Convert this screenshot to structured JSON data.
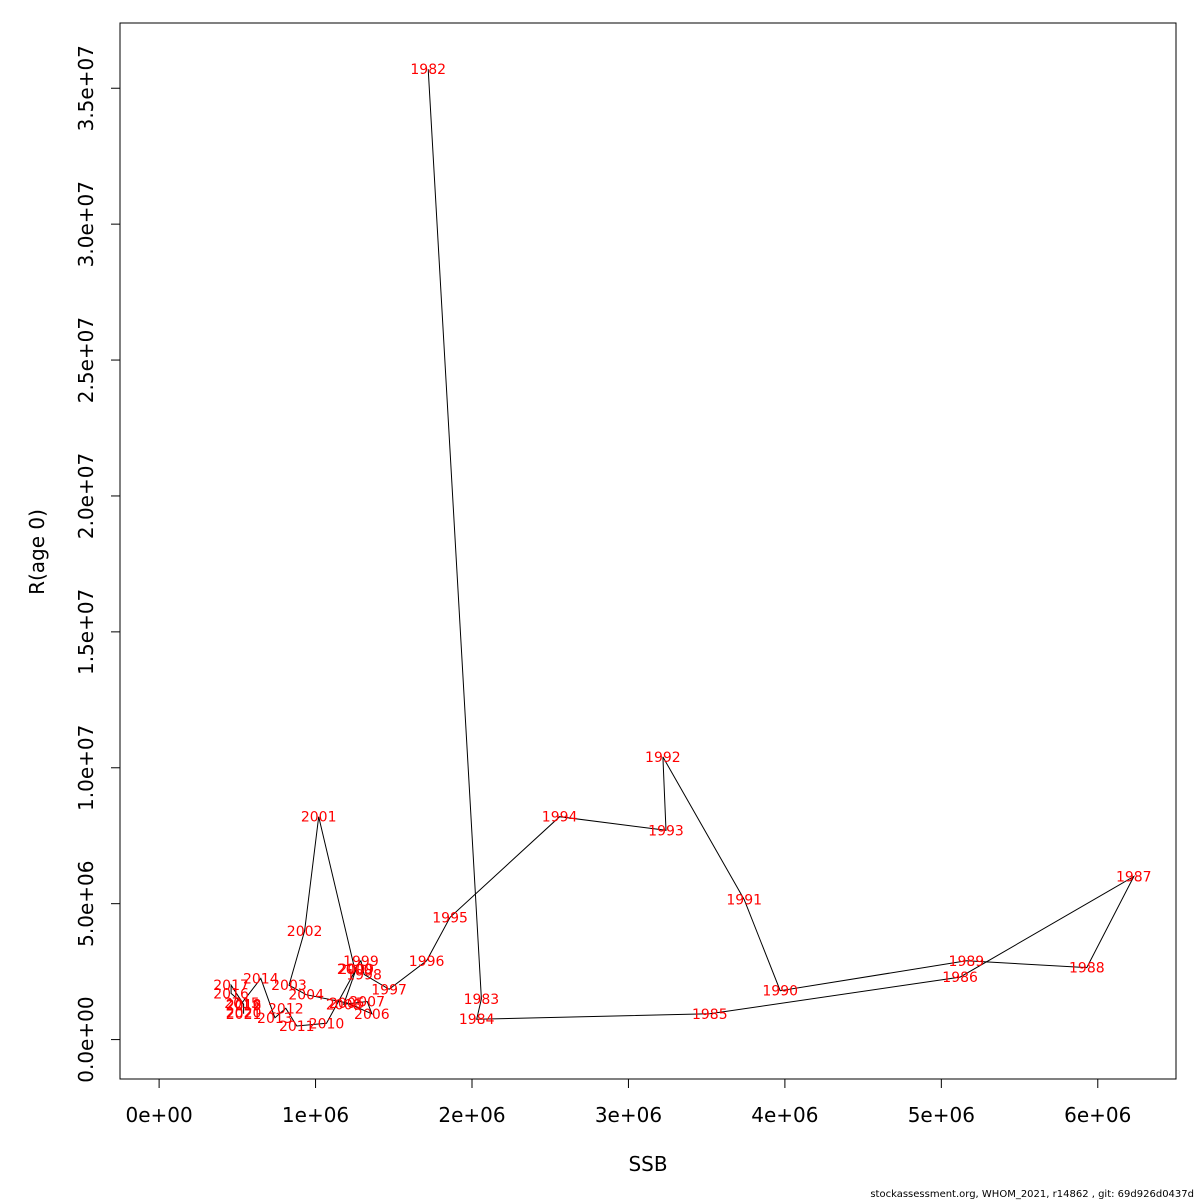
{
  "chart_data": {
    "type": "line",
    "xlabel": "SSB",
    "ylabel": "R(age 0)",
    "xlim": [
      -250000,
      6500000
    ],
    "ylim": [
      -1450000,
      37400000
    ],
    "x_ticks": [
      {
        "value": 0,
        "label": "0e+00"
      },
      {
        "value": 1000000,
        "label": "1e+06"
      },
      {
        "value": 2000000,
        "label": "2e+06"
      },
      {
        "value": 3000000,
        "label": "3e+06"
      },
      {
        "value": 4000000,
        "label": "4e+06"
      },
      {
        "value": 5000000,
        "label": "5e+06"
      },
      {
        "value": 6000000,
        "label": "6e+06"
      }
    ],
    "y_ticks": [
      {
        "value": 0,
        "label": "0.0e+00"
      },
      {
        "value": 5000000,
        "label": "5.0e+06"
      },
      {
        "value": 10000000,
        "label": "1.0e+07"
      },
      {
        "value": 15000000,
        "label": "1.5e+07"
      },
      {
        "value": 20000000,
        "label": "2.0e+07"
      },
      {
        "value": 25000000,
        "label": "2.5e+07"
      },
      {
        "value": 30000000,
        "label": "3.0e+07"
      },
      {
        "value": 35000000,
        "label": "3.5e+07"
      }
    ],
    "label_color": "#ff0000",
    "line_color": "#000000",
    "points": [
      {
        "year": "1982",
        "x": 1720000,
        "y": 35700000
      },
      {
        "year": "1983",
        "x": 2060000,
        "y": 1500000
      },
      {
        "year": "1984",
        "x": 2030000,
        "y": 750000
      },
      {
        "year": "1985",
        "x": 3520000,
        "y": 950000
      },
      {
        "year": "1986",
        "x": 5120000,
        "y": 2300000
      },
      {
        "year": "1987",
        "x": 6230000,
        "y": 6000000
      },
      {
        "year": "1988",
        "x": 5930000,
        "y": 2650000
      },
      {
        "year": "1989",
        "x": 5160000,
        "y": 2900000
      },
      {
        "year": "1990",
        "x": 3970000,
        "y": 1800000
      },
      {
        "year": "1991",
        "x": 3740000,
        "y": 5150000
      },
      {
        "year": "1992",
        "x": 3220000,
        "y": 10400000
      },
      {
        "year": "1993",
        "x": 3240000,
        "y": 7700000
      },
      {
        "year": "1994",
        "x": 2560000,
        "y": 8200000
      },
      {
        "year": "1995",
        "x": 1860000,
        "y": 4500000
      },
      {
        "year": "1996",
        "x": 1710000,
        "y": 2900000
      },
      {
        "year": "1997",
        "x": 1470000,
        "y": 1850000
      },
      {
        "year": "1998",
        "x": 1310000,
        "y": 2400000
      },
      {
        "year": "1999",
        "x": 1290000,
        "y": 2900000
      },
      {
        "year": "2000",
        "x": 1250000,
        "y": 2600000
      },
      {
        "year": "2001",
        "x": 1020000,
        "y": 8200000
      },
      {
        "year": "2002",
        "x": 930000,
        "y": 4000000
      },
      {
        "year": "2003",
        "x": 830000,
        "y": 2000000
      },
      {
        "year": "2004",
        "x": 940000,
        "y": 1650000
      },
      {
        "year": "2005",
        "x": 1200000,
        "y": 1350000
      },
      {
        "year": "2006",
        "x": 1360000,
        "y": 950000
      },
      {
        "year": "2007",
        "x": 1330000,
        "y": 1400000
      },
      {
        "year": "2008",
        "x": 1180000,
        "y": 1300000
      },
      {
        "year": "2009",
        "x": 1260000,
        "y": 2600000
      },
      {
        "year": "2010",
        "x": 1070000,
        "y": 600000
      },
      {
        "year": "2011",
        "x": 880000,
        "y": 500000
      },
      {
        "year": "2012",
        "x": 810000,
        "y": 1150000
      },
      {
        "year": "2013",
        "x": 740000,
        "y": 800000
      },
      {
        "year": "2014",
        "x": 650000,
        "y": 2250000
      },
      {
        "year": "2015",
        "x": 530000,
        "y": 1350000
      },
      {
        "year": "2016",
        "x": 460000,
        "y": 1700000
      },
      {
        "year": "2017",
        "x": 460000,
        "y": 2000000
      },
      {
        "year": "2018",
        "x": 540000,
        "y": 1300000
      },
      {
        "year": "2019",
        "x": 540000,
        "y": 1250000
      },
      {
        "year": "2020",
        "x": 540000,
        "y": 1000000
      },
      {
        "year": "2021",
        "x": 540000,
        "y": 950000
      }
    ]
  },
  "footer": "stockassessment.org, WHOM_2021, r14862 , git: 69d926d0437d"
}
